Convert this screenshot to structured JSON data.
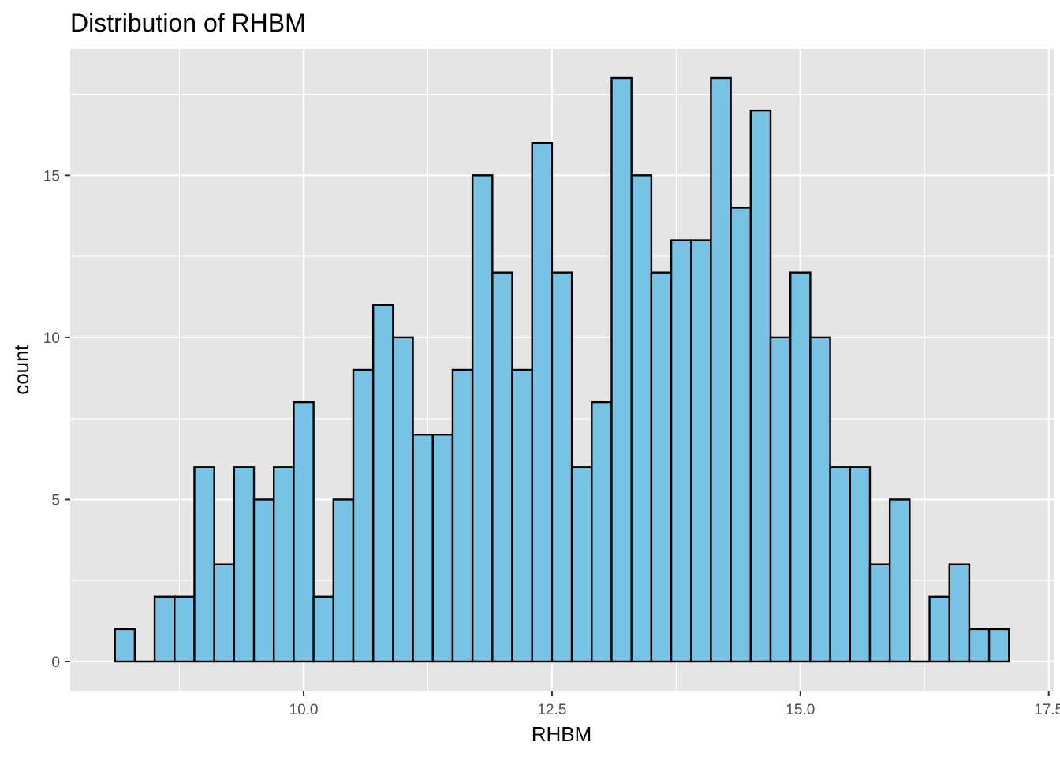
{
  "chart_data": {
    "type": "bar",
    "title": "Distribution of RHBM",
    "xlabel": "RHBM",
    "ylabel": "count",
    "xlim": [
      7.65,
      17.55
    ],
    "ylim": [
      -0.9,
      18.9
    ],
    "x_ticks": [
      10.0,
      12.5,
      15.0,
      17.5
    ],
    "x_tick_labels": [
      "10.0",
      "12.5",
      "15.0",
      "17.5"
    ],
    "y_ticks": [
      0,
      5,
      10,
      15
    ],
    "y_tick_labels": [
      "0",
      "5",
      "10",
      "15"
    ],
    "bin_start": 8.1,
    "bin_width": 0.2,
    "counts": [
      1,
      0,
      2,
      2,
      6,
      3,
      6,
      5,
      6,
      8,
      2,
      5,
      9,
      11,
      10,
      7,
      7,
      9,
      15,
      12,
      9,
      16,
      12,
      6,
      8,
      18,
      15,
      12,
      13,
      13,
      18,
      14,
      17,
      10,
      12,
      10,
      6,
      6,
      3,
      5,
      0,
      2,
      3,
      1,
      1
    ],
    "grid": true,
    "colors": {
      "bar_fill": "#77c2e5",
      "bar_edge": "#000000",
      "panel": "#e5e5e5",
      "gridline": "#ffffff"
    }
  }
}
